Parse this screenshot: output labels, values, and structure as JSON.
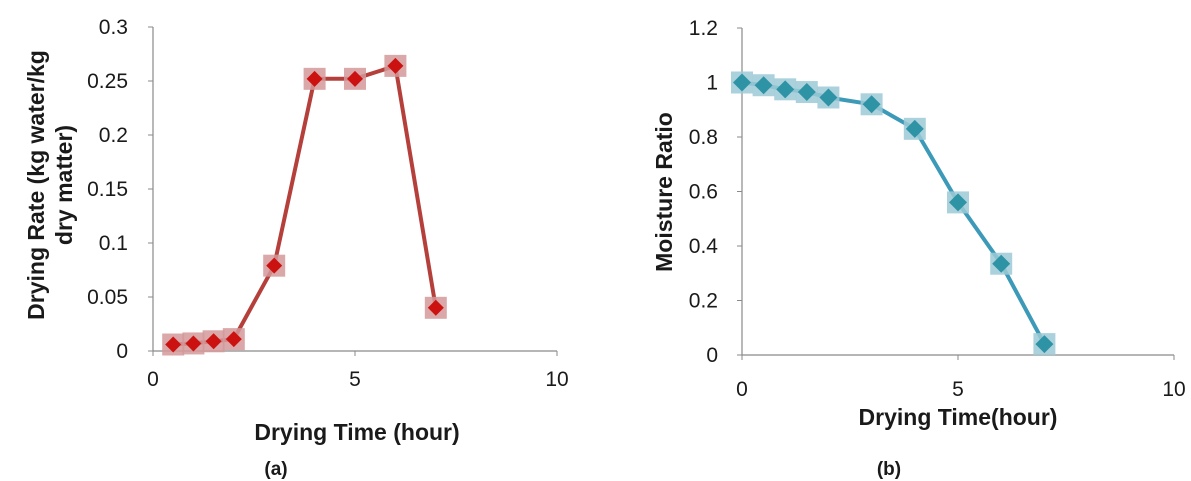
{
  "chart_data": [
    {
      "type": "line",
      "panel_label": "(a)",
      "xlabel": "Drying Time (hour)",
      "ylabel_lines": [
        "Drying Rate (kg water/kg",
        "dry matter)"
      ],
      "xlim": [
        0,
        10
      ],
      "ylim": [
        0,
        0.3
      ],
      "xticks": [
        0,
        5,
        10
      ],
      "yticks": [
        0,
        0.05,
        0.1,
        0.15,
        0.2,
        0.25,
        0.3
      ],
      "xtick_labels": [
        "0",
        "5",
        "10"
      ],
      "ytick_labels": [
        "0",
        "0.05",
        "0.1",
        "0.15",
        "0.2",
        "0.25",
        "0.3"
      ],
      "grid": false,
      "series": [
        {
          "x": [
            0.5,
            1.0,
            1.5,
            2.0,
            3.0,
            4.0,
            5.0,
            6.0,
            7.0
          ],
          "y": [
            0.006,
            0.007,
            0.009,
            0.011,
            0.079,
            0.252,
            0.252,
            0.264,
            0.04
          ],
          "line_color": "#b5403b",
          "marker_color": "#cc1111",
          "marker_halo_color": "#d4999a"
        }
      ]
    },
    {
      "type": "line",
      "panel_label": "(b)",
      "xlabel": "Drying Time(hour)",
      "ylabel_lines": [
        "Moisture Ratio"
      ],
      "xlim": [
        0,
        10
      ],
      "ylim": [
        0,
        1.2
      ],
      "xticks": [
        0,
        5,
        10
      ],
      "yticks": [
        0,
        0.2,
        0.4,
        0.6,
        0.8,
        1.0,
        1.2
      ],
      "xtick_labels": [
        "0",
        "5",
        "10"
      ],
      "ytick_labels": [
        "0",
        "0.2",
        "0.4",
        "0.6",
        "0.8",
        "1",
        "1.2"
      ],
      "grid": false,
      "series": [
        {
          "x": [
            0,
            0.5,
            1.0,
            1.5,
            2.0,
            3.0,
            4.0,
            5.0,
            6.0,
            7.0
          ],
          "y": [
            1.0,
            0.99,
            0.975,
            0.965,
            0.945,
            0.92,
            0.83,
            0.56,
            0.335,
            0.04
          ],
          "line_color": "#3c9ab8",
          "marker_color": "#2f93a6",
          "marker_halo_color": "#9ccad6"
        }
      ]
    }
  ]
}
